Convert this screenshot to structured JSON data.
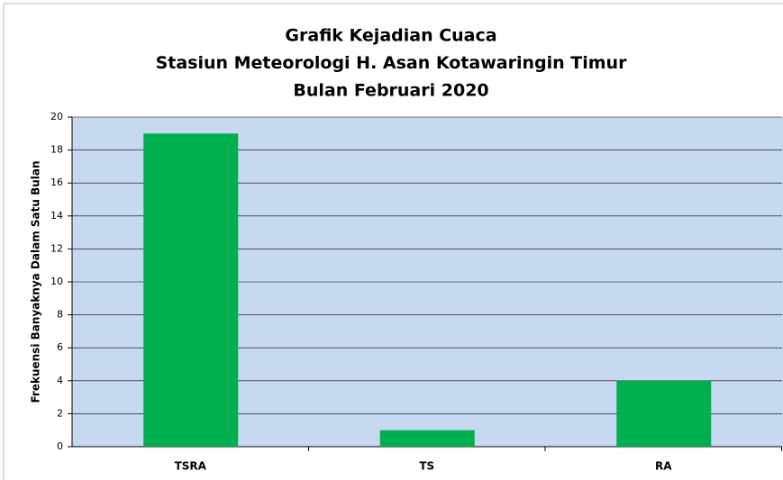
{
  "chart_data": {
    "type": "bar",
    "title": [
      "Grafik Kejadian Cuaca",
      "Stasiun Meteorologi H. Asan Kotawaringin Timur",
      "Bulan Februari 2020"
    ],
    "y_label": "Frekuensi Banyaknya Dalam Satu Bulan",
    "categories": [
      "TSRA",
      "TS",
      "RA"
    ],
    "values": [
      19,
      1,
      4
    ],
    "color": "#00b050",
    "ylim": [
      0,
      20
    ],
    "yticks": [
      0,
      2,
      4,
      6,
      8,
      10,
      12,
      14,
      16,
      18,
      20
    ],
    "grid": true
  }
}
